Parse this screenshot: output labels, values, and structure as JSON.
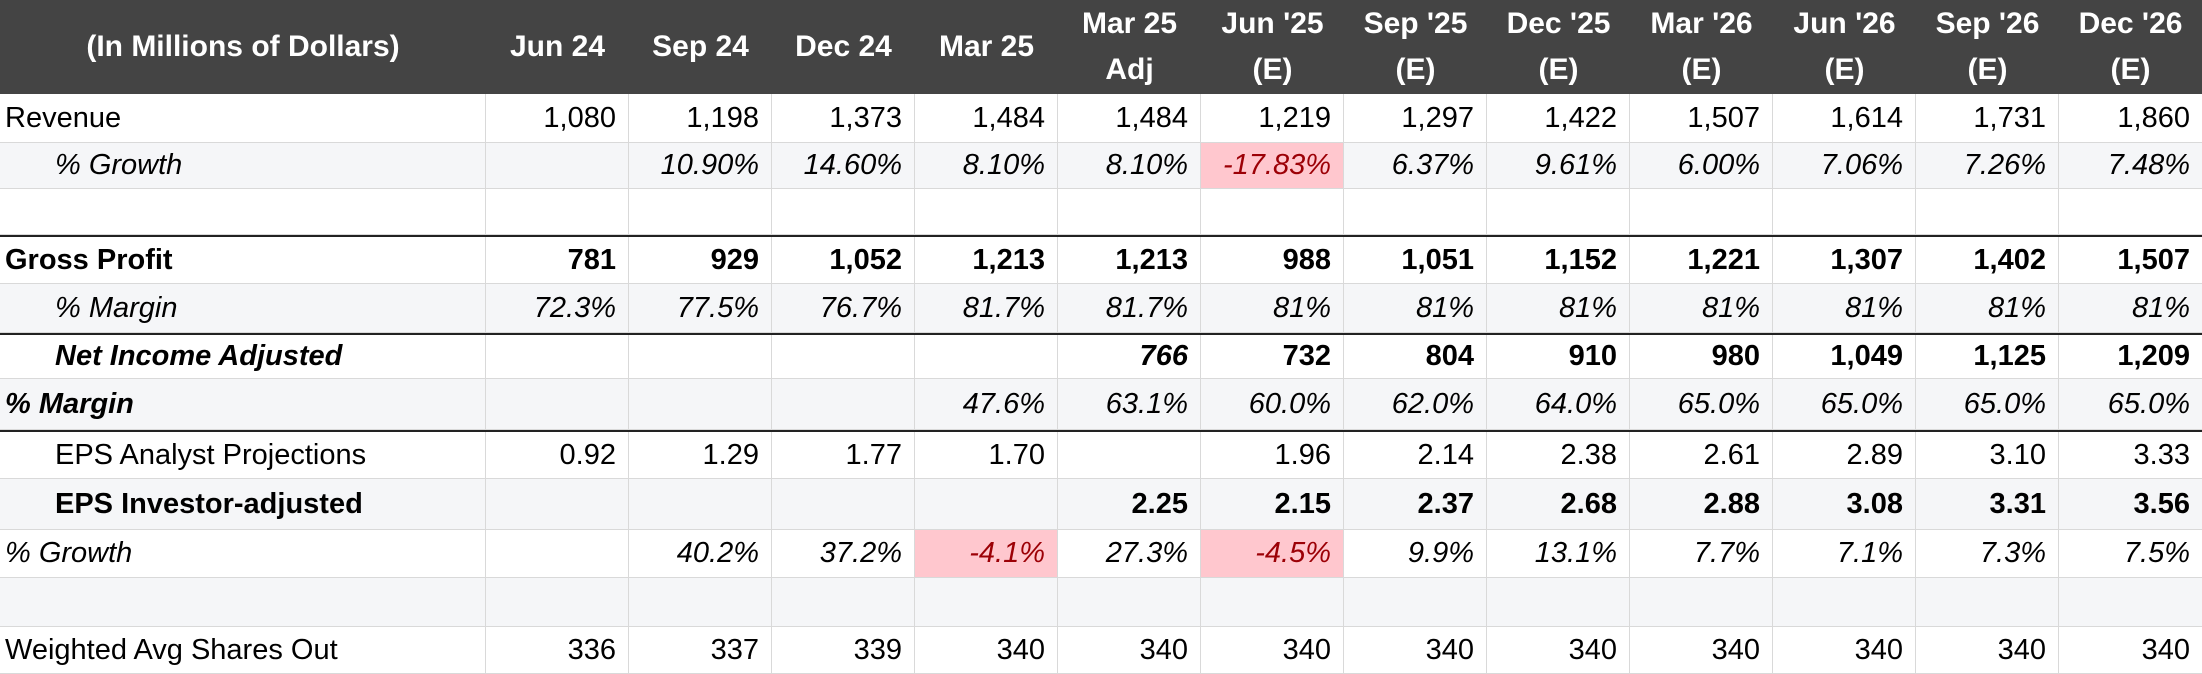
{
  "header": {
    "label": "(In Millions of Dollars)",
    "columns": [
      {
        "line1": "Jun 24",
        "line2": ""
      },
      {
        "line1": "Sep 24",
        "line2": ""
      },
      {
        "line1": "Dec 24",
        "line2": ""
      },
      {
        "line1": "Mar 25",
        "line2": ""
      },
      {
        "line1": "Mar 25",
        "line2": "Adj"
      },
      {
        "line1": "Jun '25",
        "line2": "(E)"
      },
      {
        "line1": "Sep '25",
        "line2": "(E)"
      },
      {
        "line1": "Dec '25",
        "line2": "(E)"
      },
      {
        "line1": "Mar '26",
        "line2": "(E)"
      },
      {
        "line1": "Jun '26",
        "line2": "(E)"
      },
      {
        "line1": "Sep '26",
        "line2": "(E)"
      },
      {
        "line1": "Dec '26",
        "line2": "(E)"
      }
    ]
  },
  "rows": [
    {
      "label": "Revenue",
      "values": [
        "1,080",
        "1,198",
        "1,373",
        "1,484",
        "1,484",
        "1,219",
        "1,297",
        "1,422",
        "1,507",
        "1,614",
        "1,731",
        "1,860"
      ]
    },
    {
      "label": "% Growth",
      "values": [
        "",
        "10.90%",
        "14.60%",
        "8.10%",
        "8.10%",
        "-17.83%",
        "6.37%",
        "9.61%",
        "6.00%",
        "7.06%",
        "7.26%",
        "7.48%"
      ]
    },
    {
      "label": "",
      "values": [
        "",
        "",
        "",
        "",
        "",
        "",
        "",
        "",
        "",
        "",
        "",
        ""
      ]
    },
    {
      "label": "Gross Profit",
      "values": [
        "781",
        "929",
        "1,052",
        "1,213",
        "1,213",
        "988",
        "1,051",
        "1,152",
        "1,221",
        "1,307",
        "1,402",
        "1,507"
      ]
    },
    {
      "label": "% Margin",
      "values": [
        "72.3%",
        "77.5%",
        "76.7%",
        "81.7%",
        "81.7%",
        "81%",
        "81%",
        "81%",
        "81%",
        "81%",
        "81%",
        "81%"
      ]
    },
    {
      "label": "Net Income Adjusted",
      "values": [
        "",
        "",
        "",
        "",
        "766",
        "732",
        "804",
        "910",
        "980",
        "1,049",
        "1,125",
        "1,209"
      ]
    },
    {
      "label": "% Margin",
      "values": [
        "",
        "",
        "",
        "47.6%",
        "63.1%",
        "60.0%",
        "62.0%",
        "64.0%",
        "65.0%",
        "65.0%",
        "65.0%",
        "65.0%"
      ]
    },
    {
      "label": "EPS Analyst Projections",
      "values": [
        "0.92",
        "1.29",
        "1.77",
        "1.70",
        "",
        "1.96",
        "2.14",
        "2.38",
        "2.61",
        "2.89",
        "3.10",
        "3.33"
      ]
    },
    {
      "label": "EPS Investor-adjusted",
      "values": [
        "",
        "",
        "",
        "",
        "2.25",
        "2.15",
        "2.37",
        "2.68",
        "2.88",
        "3.08",
        "3.31",
        "3.56"
      ]
    },
    {
      "label": "% Growth",
      "values": [
        "",
        "40.2%",
        "37.2%",
        "-4.1%",
        "27.3%",
        "-4.5%",
        "9.9%",
        "13.1%",
        "7.7%",
        "7.1%",
        "7.3%",
        "7.5%"
      ]
    },
    {
      "label": "",
      "values": [
        "",
        "",
        "",
        "",
        "",
        "",
        "",
        "",
        "",
        "",
        "",
        ""
      ]
    },
    {
      "label": "Weighted Avg Shares Out",
      "values": [
        "336",
        "337",
        "339",
        "340",
        "340",
        "340",
        "340",
        "340",
        "340",
        "340",
        "340",
        "340"
      ]
    }
  ],
  "colors": {
    "header_bg": "#444444",
    "negative_bg": "#ffc7ce",
    "negative_text": "#9c0006"
  }
}
